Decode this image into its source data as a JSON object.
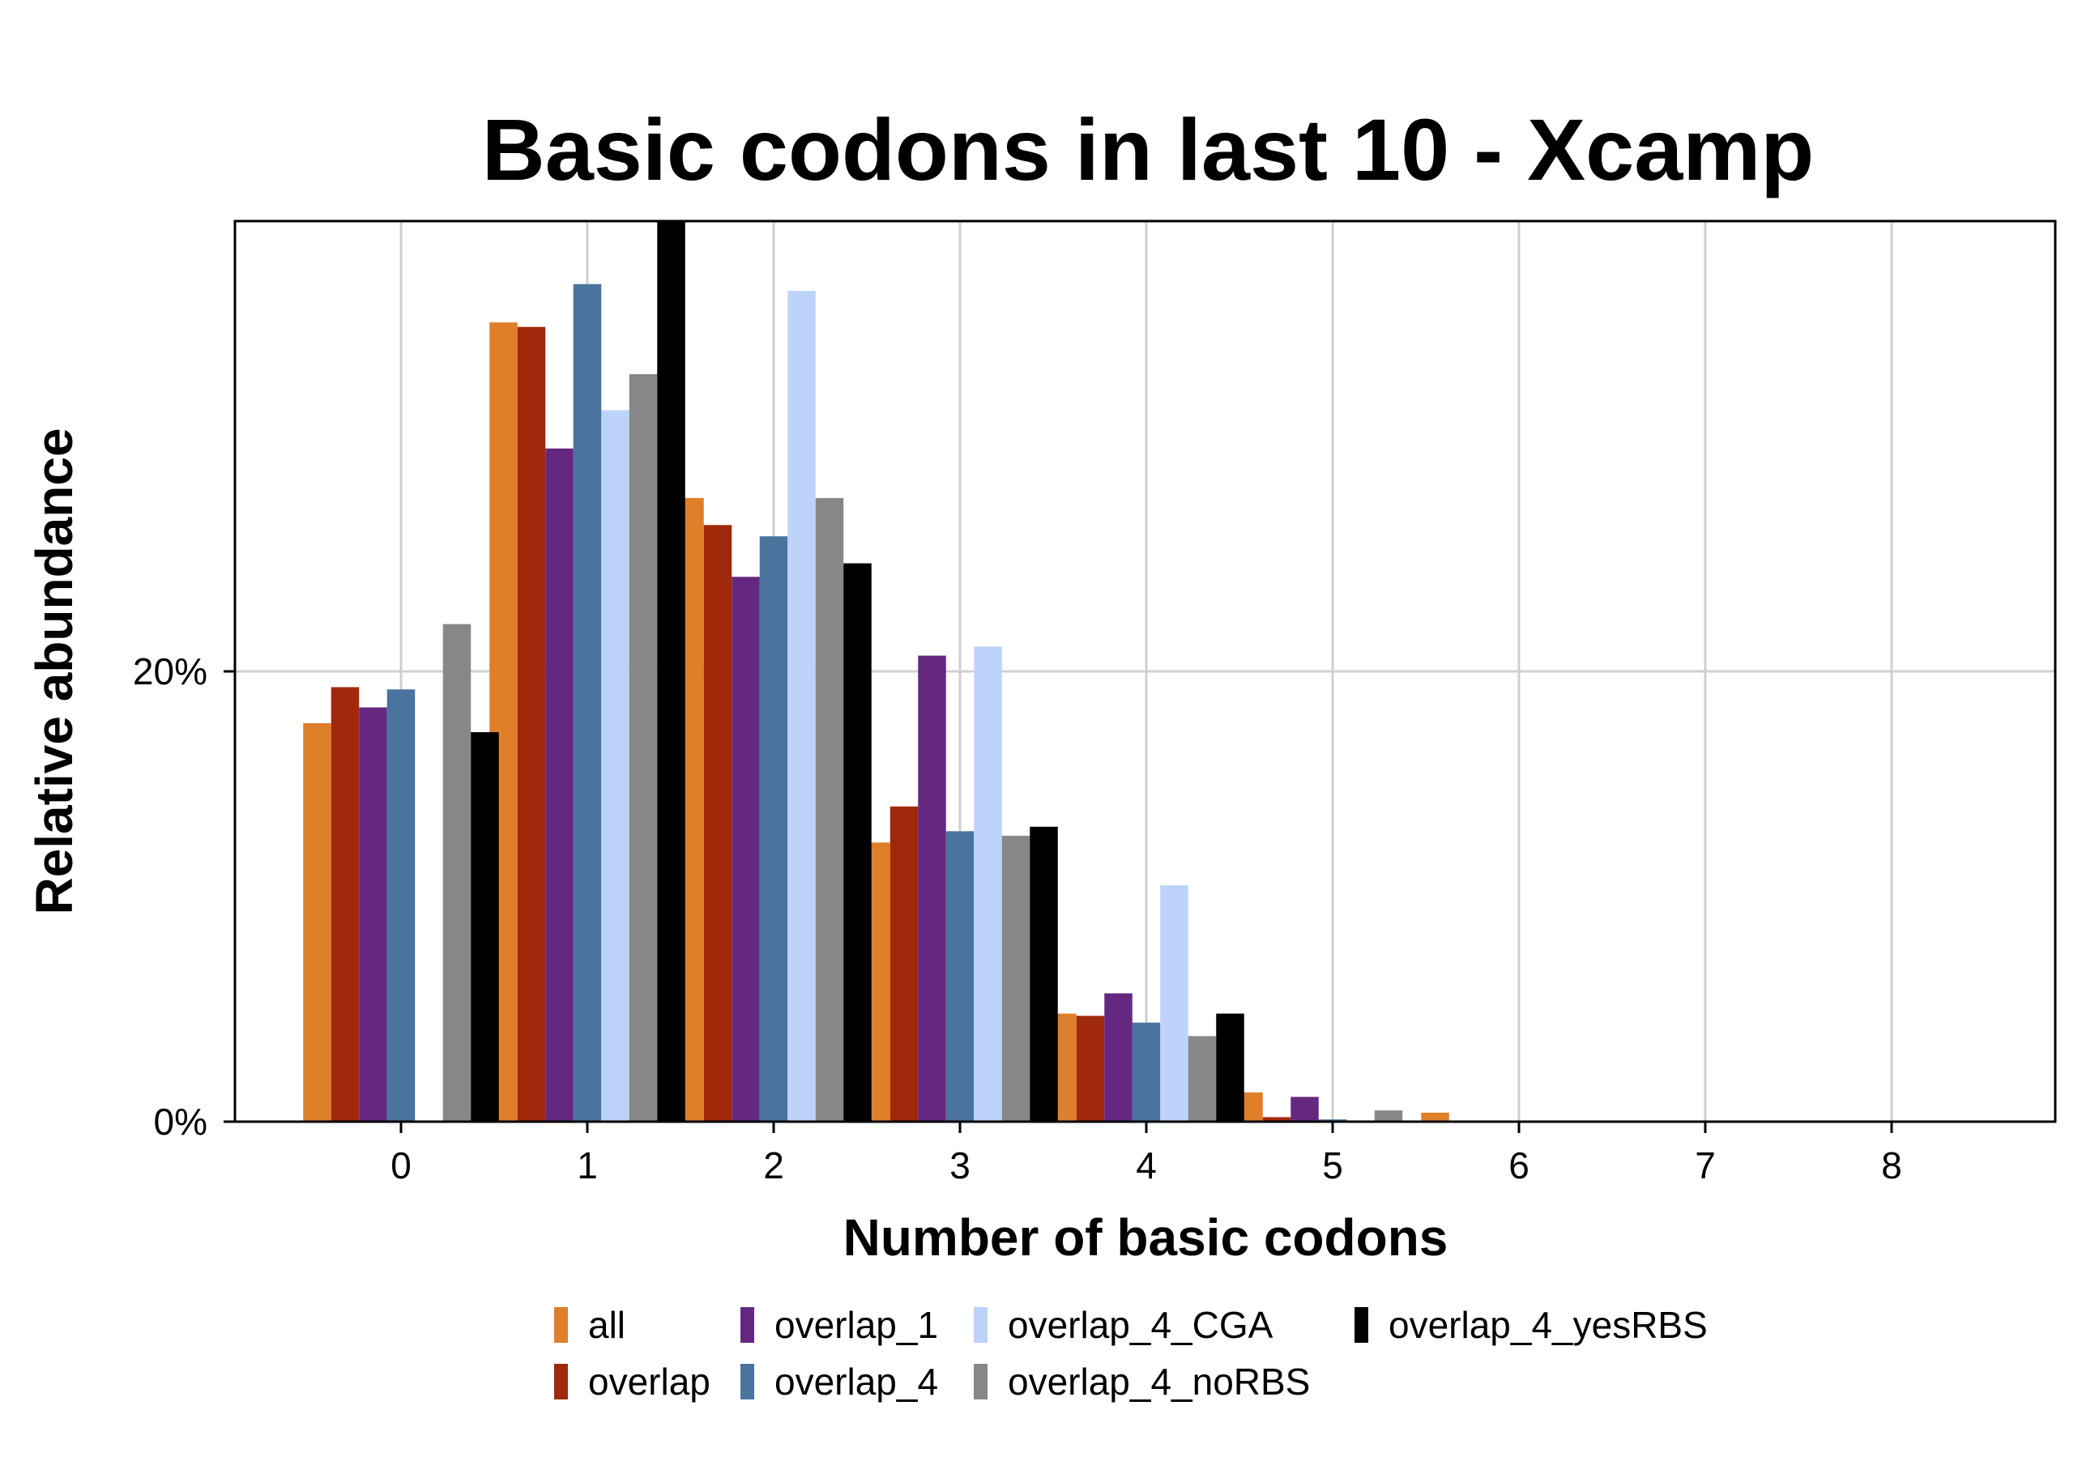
{
  "chart_data": {
    "type": "bar",
    "title": "Basic codons in last 10 - Xcamp",
    "xlabel": "Number of basic codons",
    "ylabel": "Relative abundance",
    "categories": [
      "0",
      "1",
      "2",
      "3",
      "4",
      "5",
      "6",
      "7",
      "8"
    ],
    "yticks": [
      0,
      20
    ],
    "ytick_labels": [
      "0%",
      "20%"
    ],
    "ylim": [
      0,
      40
    ],
    "grid": true,
    "legend_position": "bottom",
    "series": [
      {
        "name": "all",
        "color": "#E07F2A",
        "values": [
          17.7,
          35.5,
          27.7,
          12.4,
          4.8,
          1.3,
          0.4,
          0,
          0
        ]
      },
      {
        "name": "overlap",
        "color": "#A0290B",
        "values": [
          19.3,
          35.3,
          26.5,
          14.0,
          4.7,
          0.2,
          0,
          0,
          0
        ]
      },
      {
        "name": "overlap_1",
        "color": "#652881",
        "values": [
          18.4,
          29.9,
          24.2,
          20.7,
          5.7,
          1.1,
          0,
          0,
          0
        ]
      },
      {
        "name": "overlap_4",
        "color": "#4A739E",
        "values": [
          19.2,
          37.2,
          26.0,
          12.9,
          4.4,
          0.1,
          0,
          0,
          0
        ]
      },
      {
        "name": "overlap_4_CGA",
        "color": "#BDD3FA",
        "values": [
          0,
          31.6,
          36.9,
          21.1,
          10.5,
          0,
          0,
          0,
          0
        ]
      },
      {
        "name": "overlap_4_noRBS",
        "color": "#878787",
        "values": [
          22.1,
          33.2,
          27.7,
          12.7,
          3.8,
          0.5,
          0,
          0,
          0
        ]
      },
      {
        "name": "overlap_4_yesRBS",
        "color": "#000000",
        "values": [
          17.3,
          40.0,
          24.8,
          13.1,
          4.8,
          0,
          0,
          0,
          0
        ]
      }
    ]
  }
}
